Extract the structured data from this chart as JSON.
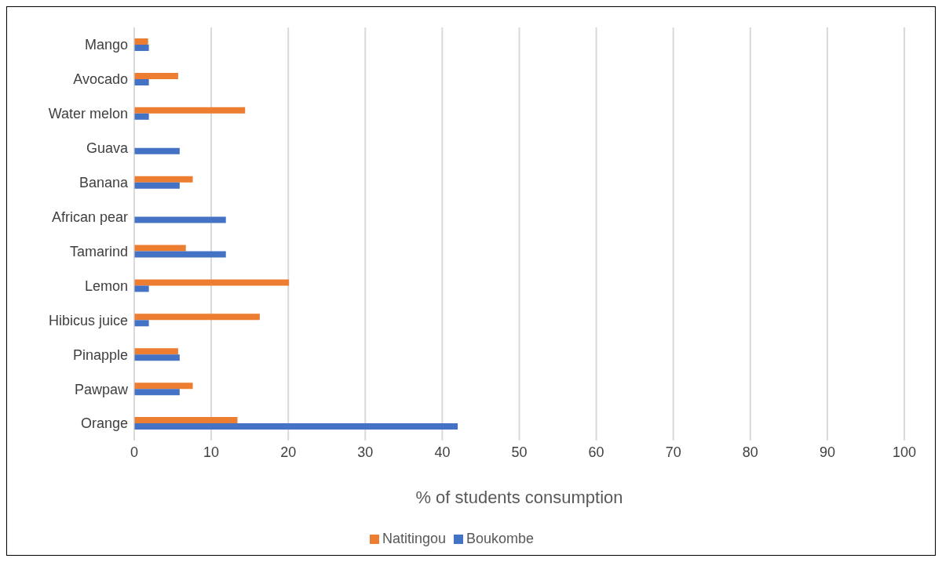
{
  "chart_data": {
    "type": "bar",
    "orientation": "horizontal",
    "xlabel": "% of students consumption",
    "categories": [
      "Mango",
      "Avocado",
      "Water melon",
      "Guava",
      "Banana",
      "African pear",
      "Tamarind",
      "Lemon",
      "Hibicus juice",
      "Pinapple",
      "Pawpaw",
      "Orange"
    ],
    "series": [
      {
        "name": "Natitingou",
        "color": "#ed7d31",
        "values": [
          1.8,
          5.7,
          14.4,
          0,
          7.6,
          0,
          6.7,
          20.1,
          16.3,
          5.7,
          7.6,
          13.4
        ]
      },
      {
        "name": "Boukombe",
        "color": "#4472c4",
        "values": [
          1.9,
          1.9,
          1.9,
          5.9,
          5.9,
          11.9,
          11.9,
          1.9,
          1.9,
          5.9,
          5.9,
          42.0
        ]
      }
    ],
    "xlim": [
      0,
      100
    ],
    "xticks": [
      0,
      10,
      20,
      30,
      40,
      50,
      60,
      70,
      80,
      90,
      100
    ],
    "grid": "x",
    "legend": "bottom"
  }
}
